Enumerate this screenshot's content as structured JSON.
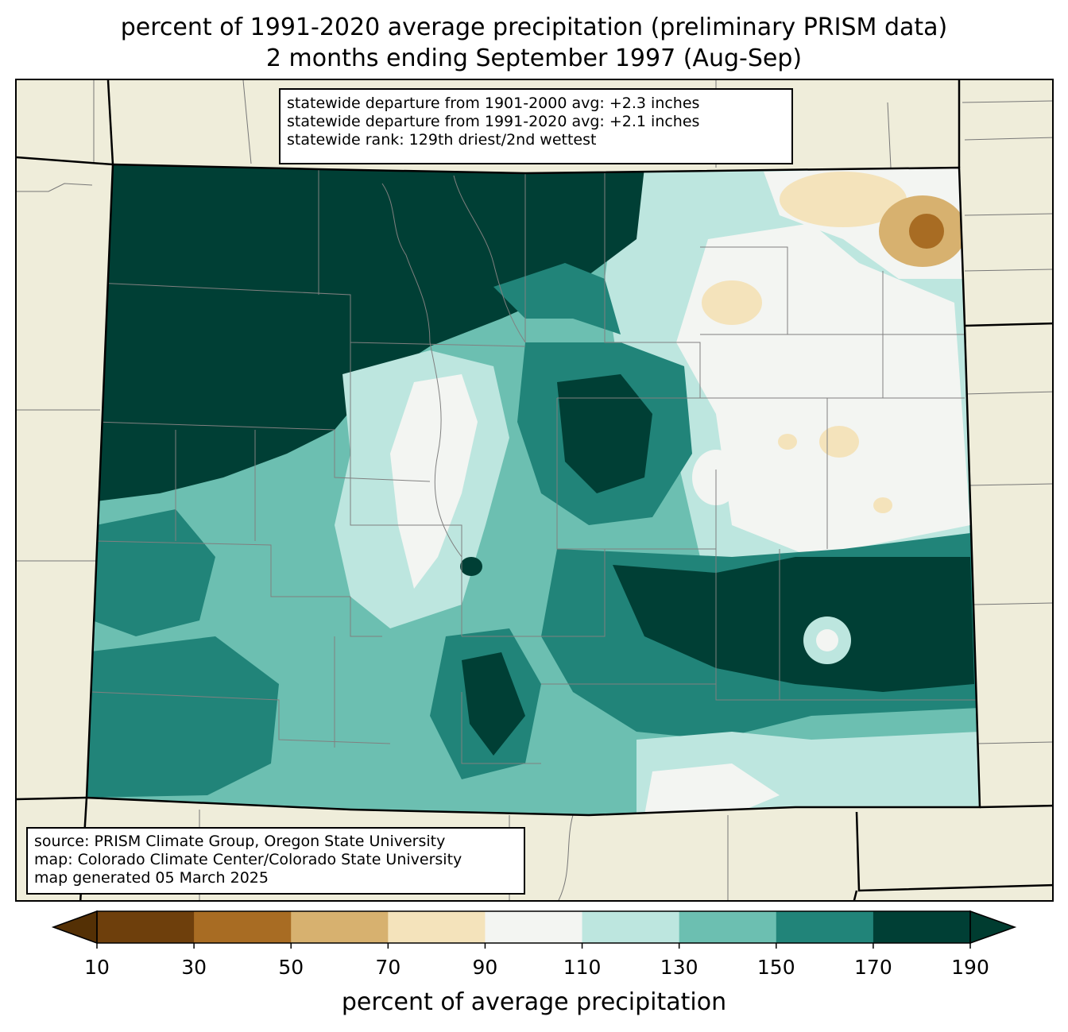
{
  "title": {
    "line1": "percent of 1991-2020 average precipitation (preliminary PRISM data)",
    "line2": "2 months ending September 1997 (Aug-Sep)"
  },
  "stats_box": {
    "line1": "statewide departure from 1901-2000 avg: +2.3 inches",
    "line2": "statewide departure from 1991-2020 avg: +2.1 inches",
    "line3": "statewide rank: 129th driest/2nd wettest"
  },
  "source_box": {
    "line1": "source: PRISM Climate Group, Oregon State University",
    "line2": "map: Colorado Climate Center/Colorado State University",
    "line3": "map generated 05 March 2025"
  },
  "colorbar": {
    "label": "percent of average precipitation",
    "ticks": [
      "10",
      "30",
      "50",
      "70",
      "90",
      "110",
      "130",
      "150",
      "170",
      "190"
    ],
    "under_color": "#543005",
    "over_color": "#003c30",
    "bin_colors": [
      "#6e3f0c",
      "#a86c23",
      "#d7b16f",
      "#f4e3bb",
      "#f3f5f2",
      "#bde6df",
      "#6cbfb1",
      "#218479",
      "#003f35"
    ]
  },
  "map": {
    "background_color": "#efedda",
    "state": "Colorado"
  }
}
